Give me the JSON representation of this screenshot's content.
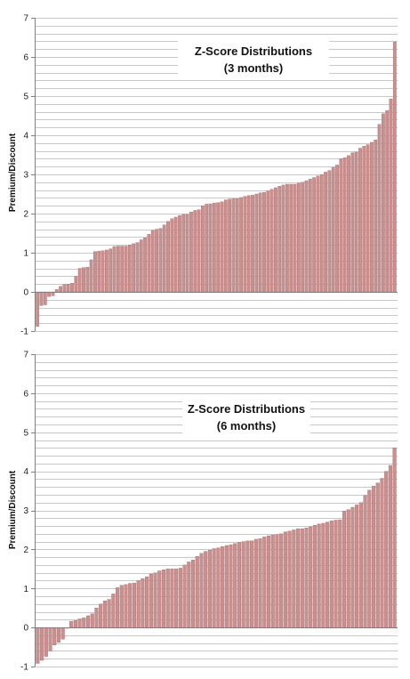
{
  "colors": {
    "bar_fill": "#c9908f",
    "bar_stroke": "#a86f6e",
    "grid": "#c8c8c8",
    "axis": "#7f7f7f"
  },
  "chart_data": [
    {
      "type": "bar",
      "title": [
        "Z-Score Distributions",
        "(3 months)"
      ],
      "xlabel": "",
      "ylabel": "Premium/Discount",
      "ylim": [
        -1,
        7
      ],
      "yticks": [
        "-1",
        "0",
        "1",
        "2",
        "3",
        "4",
        "5",
        "6",
        "7"
      ],
      "grid": true,
      "values": [
        -0.88,
        -0.35,
        -0.33,
        -0.12,
        -0.1,
        0.06,
        0.14,
        0.19,
        0.2,
        0.22,
        0.4,
        0.6,
        0.62,
        0.63,
        0.82,
        1.03,
        1.04,
        1.05,
        1.07,
        1.1,
        1.16,
        1.17,
        1.17,
        1.17,
        1.2,
        1.23,
        1.26,
        1.33,
        1.38,
        1.47,
        1.57,
        1.6,
        1.62,
        1.71,
        1.8,
        1.87,
        1.91,
        1.95,
        1.98,
        1.98,
        2.04,
        2.08,
        2.1,
        2.2,
        2.24,
        2.25,
        2.27,
        2.28,
        2.3,
        2.35,
        2.37,
        2.38,
        2.38,
        2.41,
        2.44,
        2.46,
        2.47,
        2.5,
        2.53,
        2.54,
        2.58,
        2.62,
        2.66,
        2.7,
        2.73,
        2.75,
        2.75,
        2.75,
        2.78,
        2.8,
        2.84,
        2.88,
        2.92,
        2.96,
        3.0,
        3.06,
        3.1,
        3.18,
        3.24,
        3.4,
        3.43,
        3.48,
        3.55,
        3.57,
        3.67,
        3.72,
        3.76,
        3.82,
        3.88,
        4.28,
        4.55,
        4.63,
        4.93,
        6.38
      ]
    },
    {
      "type": "bar",
      "title": [
        "Z-Score Distributions",
        "(6 months)"
      ],
      "xlabel": "",
      "ylabel": "Premium/Discount",
      "ylim": [
        -1,
        7
      ],
      "yticks": [
        "-1",
        "0",
        "1",
        "2",
        "3",
        "4",
        "5",
        "6",
        "7"
      ],
      "grid": true,
      "values": [
        -0.92,
        -0.84,
        -0.74,
        -0.6,
        -0.45,
        -0.38,
        -0.3,
        -0.02,
        0.16,
        0.18,
        0.22,
        0.25,
        0.3,
        0.35,
        0.5,
        0.6,
        0.68,
        0.72,
        0.86,
        1.02,
        1.08,
        1.1,
        1.13,
        1.14,
        1.2,
        1.25,
        1.3,
        1.37,
        1.4,
        1.45,
        1.48,
        1.5,
        1.5,
        1.5,
        1.52,
        1.6,
        1.68,
        1.73,
        1.82,
        1.9,
        1.95,
        1.98,
        2.02,
        2.04,
        2.07,
        2.1,
        2.12,
        2.15,
        2.18,
        2.2,
        2.22,
        2.22,
        2.26,
        2.28,
        2.32,
        2.35,
        2.37,
        2.38,
        2.4,
        2.45,
        2.47,
        2.5,
        2.53,
        2.53,
        2.55,
        2.58,
        2.62,
        2.65,
        2.67,
        2.7,
        2.73,
        2.75,
        2.76,
        2.98,
        3.02,
        3.08,
        3.14,
        3.2,
        3.38,
        3.52,
        3.62,
        3.7,
        3.82,
        4.0,
        4.15,
        4.6
      ]
    }
  ]
}
